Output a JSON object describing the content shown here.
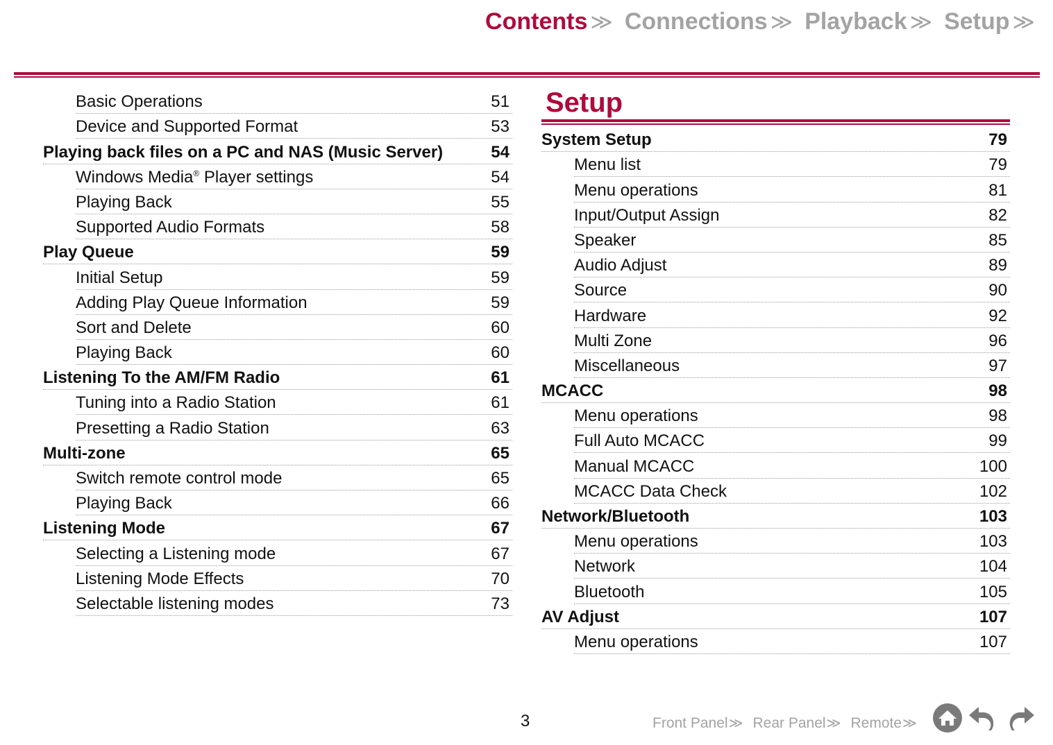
{
  "top_nav": {
    "tabs": [
      {
        "label": "Contents",
        "active": true
      },
      {
        "label": "Connections",
        "active": false
      },
      {
        "label": "Playback",
        "active": false
      },
      {
        "label": "Setup",
        "active": false
      }
    ],
    "separator": "≫"
  },
  "left_toc": [
    {
      "label": "Basic Operations",
      "page": "51",
      "level": 2
    },
    {
      "label": "Device and Supported Format",
      "page": "53",
      "level": 2
    },
    {
      "label": "Playing back files on a PC and NAS (Music Server)",
      "page": "54",
      "level": 1
    },
    {
      "label": "Windows Media",
      "sup": "®",
      "suffix": " Player settings",
      "page": "54",
      "level": 2
    },
    {
      "label": "Playing Back",
      "page": "55",
      "level": 2
    },
    {
      "label": "Supported Audio Formats",
      "page": "58",
      "level": 2
    },
    {
      "label": "Play Queue",
      "page": "59",
      "level": 1
    },
    {
      "label": "Initial Setup",
      "page": "59",
      "level": 2
    },
    {
      "label": "Adding Play Queue Information",
      "page": "59",
      "level": 2
    },
    {
      "label": "Sort and Delete",
      "page": "60",
      "level": 2
    },
    {
      "label": "Playing Back",
      "page": "60",
      "level": 2
    },
    {
      "label": "Listening To the AM/FM Radio",
      "page": "61",
      "level": 1
    },
    {
      "label": "Tuning into a Radio Station",
      "page": "61",
      "level": 2
    },
    {
      "label": "Presetting a Radio Station",
      "page": "63",
      "level": 2
    },
    {
      "label": "Multi-zone",
      "page": "65",
      "level": 1
    },
    {
      "label": "Switch remote control mode",
      "page": "65",
      "level": 2
    },
    {
      "label": "Playing Back",
      "page": "66",
      "level": 2
    },
    {
      "label": "Listening Mode",
      "page": "67",
      "level": 1
    },
    {
      "label": "Selecting a Listening mode",
      "page": "67",
      "level": 2
    },
    {
      "label": "Listening Mode Effects",
      "page": "70",
      "level": 2
    },
    {
      "label": "Selectable listening modes",
      "page": "73",
      "level": 2
    }
  ],
  "right_section": {
    "title": "Setup",
    "toc": [
      {
        "label": "System Setup",
        "page": "79",
        "level": 1
      },
      {
        "label": "Menu list",
        "page": "79",
        "level": 2
      },
      {
        "label": "Menu operations",
        "page": "81",
        "level": 2
      },
      {
        "label": "Input/Output Assign",
        "page": "82",
        "level": 2
      },
      {
        "label": "Speaker",
        "page": "85",
        "level": 2
      },
      {
        "label": "Audio Adjust",
        "page": "89",
        "level": 2
      },
      {
        "label": "Source",
        "page": "90",
        "level": 2
      },
      {
        "label": "Hardware",
        "page": "92",
        "level": 2
      },
      {
        "label": "Multi Zone",
        "page": "96",
        "level": 2
      },
      {
        "label": "Miscellaneous",
        "page": "97",
        "level": 2
      },
      {
        "label": "MCACC",
        "page": "98",
        "level": 1
      },
      {
        "label": "Menu operations",
        "page": "98",
        "level": 2
      },
      {
        "label": "Full Auto MCACC",
        "page": "99",
        "level": 2
      },
      {
        "label": "Manual MCACC",
        "page": "100",
        "level": 2
      },
      {
        "label": "MCACC Data Check",
        "page": "102",
        "level": 2
      },
      {
        "label": "Network/Bluetooth",
        "page": "103",
        "level": 1
      },
      {
        "label": "Menu operations",
        "page": "103",
        "level": 2
      },
      {
        "label": "Network",
        "page": "104",
        "level": 2
      },
      {
        "label": "Bluetooth",
        "page": "105",
        "level": 2
      },
      {
        "label": "AV Adjust",
        "page": "107",
        "level": 1
      },
      {
        "label": "Menu operations",
        "page": "107",
        "level": 2
      }
    ]
  },
  "footer": {
    "page_number": "3",
    "nav": [
      {
        "label": "Front Panel"
      },
      {
        "label": "Rear Panel"
      },
      {
        "label": "Remote"
      }
    ],
    "separator": "≫",
    "icons": [
      "home-icon",
      "back-arrow-icon",
      "forward-arrow-icon"
    ]
  },
  "colors": {
    "accent": "#b00a3c",
    "inactive": "#a3a3a3"
  }
}
